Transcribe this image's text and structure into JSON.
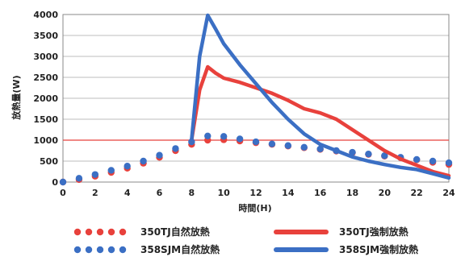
{
  "chart_data": {
    "type": "line",
    "xlabel": "時間(H)",
    "ylabel": "放熱量(W)",
    "xlim": [
      0,
      24
    ],
    "ylim": [
      0,
      4000
    ],
    "x_ticks": [
      0,
      2,
      4,
      6,
      8,
      10,
      12,
      14,
      16,
      18,
      20,
      22,
      24
    ],
    "y_ticks": [
      0,
      500,
      1000,
      1500,
      2000,
      2500,
      3000,
      3500,
      4000
    ],
    "reference_line": {
      "y": 1000,
      "color": "#e8413c"
    },
    "grid": "horizontal",
    "legend_position": "bottom",
    "series": [
      {
        "name": "350TJ自然放熱",
        "style": "dotted",
        "color": "#e8413c",
        "x": [
          0,
          1,
          2,
          3,
          4,
          5,
          6,
          7,
          8,
          9,
          10,
          11,
          12,
          13,
          14,
          15,
          16,
          17,
          18,
          19,
          20,
          21,
          22,
          23,
          24
        ],
        "y": [
          0,
          60,
          140,
          230,
          330,
          450,
          590,
          750,
          900,
          1000,
          1010,
          980,
          940,
          900,
          860,
          820,
          780,
          740,
          700,
          660,
          620,
          580,
          530,
          470,
          420
        ]
      },
      {
        "name": "358SJM自然放熱",
        "style": "dotted",
        "color": "#3b6fc4",
        "x": [
          0,
          1,
          2,
          3,
          4,
          5,
          6,
          7,
          8,
          9,
          10,
          11,
          12,
          13,
          14,
          15,
          16,
          17,
          18,
          19,
          20,
          21,
          22,
          23,
          24
        ],
        "y": [
          0,
          90,
          180,
          280,
          380,
          500,
          640,
          800,
          960,
          1100,
          1090,
          1030,
          960,
          910,
          870,
          830,
          790,
          750,
          710,
          670,
          630,
          590,
          540,
          500,
          460
        ]
      },
      {
        "name": "350TJ強制放熱",
        "style": "solid",
        "color": "#e8413c",
        "x": [
          8,
          8.5,
          9,
          9.5,
          10,
          11,
          12,
          13,
          14,
          15,
          16,
          17,
          18,
          19,
          20,
          21,
          22,
          23,
          24
        ],
        "y": [
          1000,
          2200,
          2750,
          2600,
          2480,
          2380,
          2250,
          2120,
          1950,
          1750,
          1650,
          1500,
          1250,
          1000,
          750,
          550,
          400,
          250,
          150
        ]
      },
      {
        "name": "358SJM強制放熱",
        "style": "solid",
        "color": "#3b6fc4",
        "x": [
          8,
          8.5,
          9,
          9.5,
          10,
          11,
          12,
          13,
          14,
          15,
          16,
          17,
          18,
          19,
          20,
          21,
          22,
          23,
          24
        ],
        "y": [
          1000,
          3000,
          3980,
          3650,
          3300,
          2800,
          2350,
          1900,
          1500,
          1150,
          900,
          750,
          600,
          500,
          420,
          350,
          300,
          200,
          100
        ]
      }
    ],
    "legend": [
      {
        "label": "350TJ自然放熱",
        "series": 0
      },
      {
        "label": "350TJ強制放熱",
        "series": 2
      },
      {
        "label": "358SJM自然放熱",
        "series": 1
      },
      {
        "label": "358SJM強制放熱",
        "series": 3
      }
    ]
  }
}
